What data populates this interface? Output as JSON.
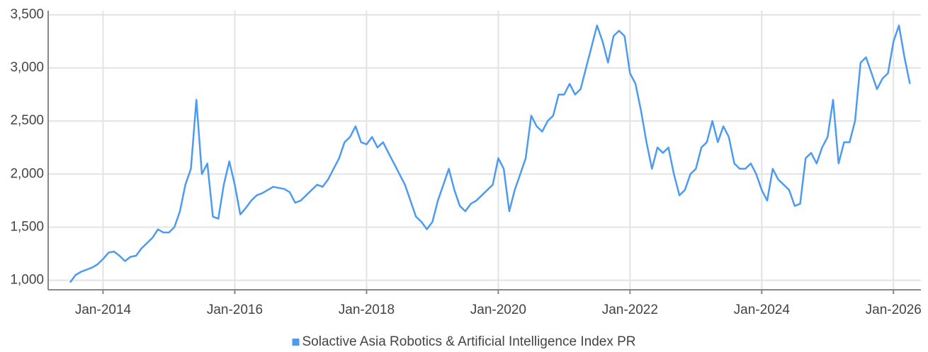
{
  "chart_data": {
    "type": "line",
    "x": [
      "2013-07",
      "2013-08",
      "2013-09",
      "2013-10",
      "2013-11",
      "2013-12",
      "2014-01",
      "2014-02",
      "2014-03",
      "2014-04",
      "2014-05",
      "2014-06",
      "2014-07",
      "2014-08",
      "2014-09",
      "2014-10",
      "2014-11",
      "2014-12",
      "2015-01",
      "2015-02",
      "2015-03",
      "2015-04",
      "2015-05",
      "2015-06",
      "2015-07",
      "2015-08",
      "2015-09",
      "2015-10",
      "2015-11",
      "2015-12",
      "2016-01",
      "2016-02",
      "2016-03",
      "2016-04",
      "2016-05",
      "2016-06",
      "2016-07",
      "2016-08",
      "2016-09",
      "2016-10",
      "2016-11",
      "2016-12",
      "2017-01",
      "2017-02",
      "2017-03",
      "2017-04",
      "2017-05",
      "2017-06",
      "2017-07",
      "2017-08",
      "2017-09",
      "2017-10",
      "2017-11",
      "2017-12",
      "2018-01",
      "2018-02",
      "2018-03",
      "2018-04",
      "2018-05",
      "2018-06",
      "2018-07",
      "2018-08",
      "2018-09",
      "2018-10",
      "2018-11",
      "2018-12",
      "2019-01",
      "2019-02",
      "2019-03",
      "2019-04",
      "2019-05",
      "2019-06",
      "2019-07",
      "2019-08",
      "2019-09",
      "2019-10",
      "2019-11",
      "2019-12",
      "2020-01",
      "2020-02",
      "2020-03",
      "2020-04",
      "2020-05",
      "2020-06",
      "2020-07",
      "2020-08",
      "2020-09",
      "2020-10",
      "2020-11",
      "2020-12",
      "2021-01",
      "2021-02",
      "2021-03",
      "2021-04",
      "2021-05",
      "2021-06",
      "2021-07",
      "2021-08",
      "2021-09",
      "2021-10",
      "2021-11",
      "2021-12",
      "2022-01",
      "2022-02",
      "2022-03",
      "2022-04",
      "2022-05",
      "2022-06",
      "2022-07",
      "2022-08",
      "2022-09",
      "2022-10",
      "2022-11",
      "2022-12",
      "2023-01",
      "2023-02",
      "2023-03",
      "2023-04",
      "2023-05",
      "2023-06",
      "2023-07",
      "2023-08",
      "2023-09",
      "2023-10",
      "2023-11",
      "2023-12",
      "2024-01",
      "2024-02",
      "2024-03",
      "2024-04",
      "2024-05",
      "2024-06",
      "2024-07",
      "2024-08",
      "2024-09",
      "2024-10",
      "2024-11",
      "2024-12",
      "2025-01",
      "2025-02",
      "2025-03",
      "2025-04",
      "2025-05",
      "2025-06",
      "2025-07",
      "2025-08",
      "2025-09",
      "2025-10",
      "2025-11",
      "2025-12",
      "2026-01",
      "2026-02",
      "2026-03",
      "2026-04"
    ],
    "series": [
      {
        "name": "Solactive Asia Robotics & Artificial Intelligence Index PR",
        "color": "#4d9bf0",
        "values": [
          980,
          1050,
          1080,
          1100,
          1120,
          1150,
          1200,
          1260,
          1270,
          1230,
          1180,
          1220,
          1230,
          1300,
          1350,
          1400,
          1480,
          1450,
          1450,
          1500,
          1650,
          1900,
          2050,
          2700,
          2000,
          2100,
          1600,
          1580,
          1900,
          2120,
          1900,
          1620,
          1680,
          1750,
          1800,
          1820,
          1850,
          1880,
          1870,
          1860,
          1830,
          1730,
          1750,
          1800,
          1850,
          1900,
          1880,
          1950,
          2050,
          2150,
          2300,
          2350,
          2450,
          2300,
          2280,
          2350,
          2250,
          2300,
          2200,
          2100,
          2000,
          1900,
          1750,
          1600,
          1550,
          1480,
          1550,
          1750,
          1900,
          2050,
          1850,
          1700,
          1650,
          1720,
          1750,
          1800,
          1850,
          1900,
          2150,
          2050,
          1650,
          1850,
          2000,
          2150,
          2550,
          2450,
          2400,
          2500,
          2550,
          2750,
          2750,
          2850,
          2750,
          2800,
          3000,
          3200,
          3400,
          3250,
          3050,
          3300,
          3350,
          3300,
          2950,
          2850,
          2600,
          2300,
          2050,
          2250,
          2200,
          2250,
          2000,
          1800,
          1850,
          2000,
          2050,
          2250,
          2300,
          2500,
          2300,
          2450,
          2350,
          2100,
          2050,
          2050,
          2100,
          2000,
          1850,
          1750,
          2050,
          1950,
          1900,
          1850,
          1700,
          1720,
          2150,
          2200,
          2100,
          2250,
          2350,
          2700,
          2100,
          2300,
          2300,
          2500,
          3050,
          3100,
          2950,
          2800,
          2900,
          2950,
          3250,
          3400,
          3100,
          2850
        ]
      }
    ],
    "xlim": [
      "2013-03",
      "2026-06"
    ],
    "xticks": [
      {
        "value": "2014-01",
        "label": "Jan-2014"
      },
      {
        "value": "2016-01",
        "label": "Jan-2016"
      },
      {
        "value": "2018-01",
        "label": "Jan-2018"
      },
      {
        "value": "2020-01",
        "label": "Jan-2020"
      },
      {
        "value": "2022-01",
        "label": "Jan-2022"
      },
      {
        "value": "2024-01",
        "label": "Jan-2024"
      },
      {
        "value": "2026-01",
        "label": "Jan-2026"
      }
    ],
    "ylim": [
      910,
      3540
    ],
    "yticks": [
      {
        "value": 1000,
        "label": "1,000"
      },
      {
        "value": 1500,
        "label": "1,500"
      },
      {
        "value": 2000,
        "label": "2,000"
      },
      {
        "value": 2500,
        "label": "2,500"
      },
      {
        "value": 3000,
        "label": "3,000"
      },
      {
        "value": 3500,
        "label": "3,500"
      }
    ],
    "grid": true,
    "legend": "bottom"
  }
}
